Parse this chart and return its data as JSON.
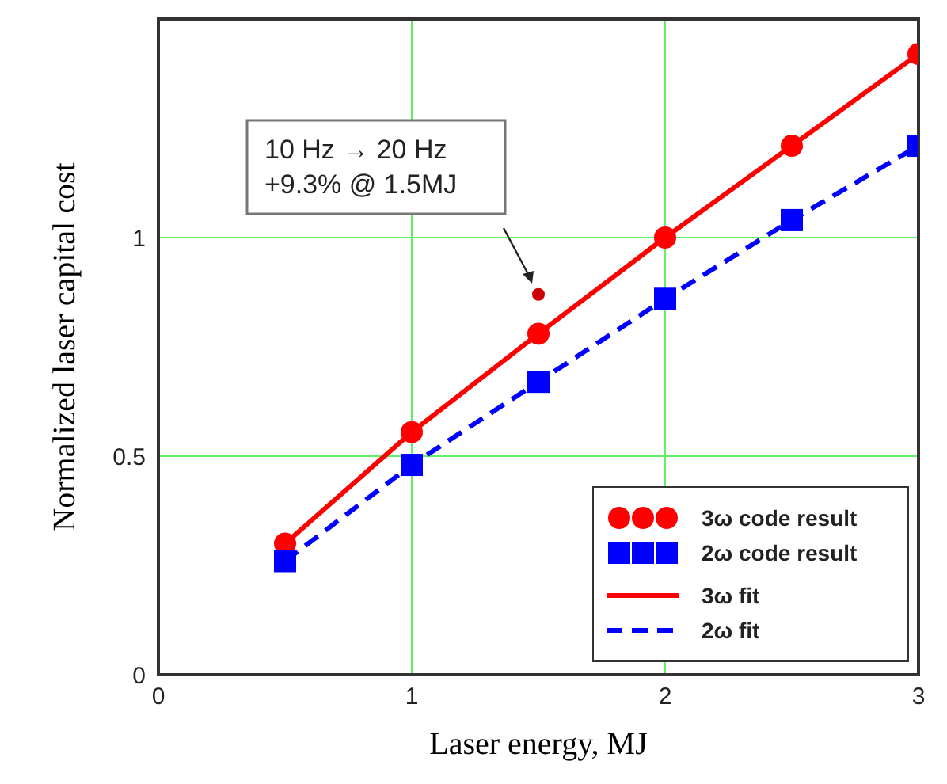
{
  "chart_data": {
    "type": "scatter",
    "xlabel": "Laser energy, MJ",
    "ylabel": "Normalized laser capital cost",
    "xlim": [
      0,
      3
    ],
    "xticks": [
      0,
      1,
      2,
      3
    ],
    "ylim": [
      0,
      1.5
    ],
    "yticks": [
      0,
      0.5,
      1
    ],
    "grid": true,
    "legend": "bottom right",
    "series": [
      {
        "name": "3ω code result",
        "color": "#ff0000",
        "marker": "circle",
        "x": [
          0.5,
          1,
          1.5,
          2,
          2.5,
          3
        ],
        "values": [
          0.3,
          0.555,
          0.78,
          1.0,
          1.21,
          1.42
        ]
      },
      {
        "name": "2ω code result",
        "color": "#0000ff",
        "marker": "square",
        "x": [
          0.5,
          1,
          1.5,
          2,
          2.5,
          3
        ],
        "values": [
          0.26,
          0.48,
          0.67,
          0.86,
          1.04,
          1.21
        ]
      },
      {
        "type": "line",
        "name": "3ω fit",
        "color": "#ff0000",
        "marker": "none",
        "line_style": "solid",
        "x": [
          0.5,
          1,
          1.5,
          2,
          2.5,
          3
        ],
        "values": [
          0.3,
          0.555,
          0.78,
          1.0,
          1.21,
          1.42
        ]
      },
      {
        "type": "line",
        "name": "2ω fit",
        "color": "#0000ff",
        "marker": "none",
        "line_style": "dashed",
        "x": [
          0.5,
          1,
          1.5,
          2,
          2.5,
          3
        ],
        "values": [
          0.26,
          0.48,
          0.67,
          0.86,
          1.04,
          1.21
        ]
      },
      {
        "color": "#cc0000",
        "marker": "circle",
        "x": [
          1.5
        ],
        "values": [
          0.87
        ]
      }
    ],
    "annotations": [
      "10 Hz → 20 Hz\n+9.3% @ 1.5MJ"
    ]
  }
}
